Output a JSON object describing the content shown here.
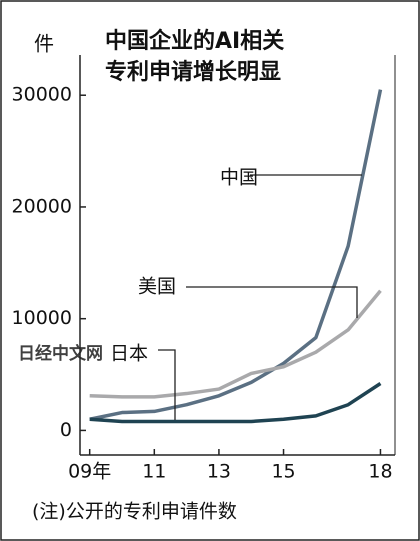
{
  "chart_data": {
    "type": "line",
    "title": [
      "中国企业的AI相关",
      "专利申请增长明显"
    ],
    "y_label": "件",
    "note": "(注)公开的专利申请件数",
    "watermark": "日经中文网",
    "x": [
      9,
      10,
      11,
      12,
      13,
      14,
      15,
      16,
      17,
      18
    ],
    "xlim": [
      8.7,
      18.45
    ],
    "xticks": [
      {
        "value": 9,
        "label": "09年"
      },
      11,
      13,
      15,
      18
    ],
    "ylim": [
      -2200,
      33600
    ],
    "yticks": [
      0,
      10000,
      20000,
      30000
    ],
    "series": [
      {
        "name": "中国",
        "color": "#5b7083",
        "values": [
          1000,
          1600,
          1700,
          2300,
          3100,
          4300,
          6000,
          8300,
          16500,
          30500
        ]
      },
      {
        "name": "美国",
        "color": "#a9a9ab",
        "values": [
          3100,
          3000,
          3000,
          3300,
          3700,
          5100,
          5700,
          7000,
          9000,
          12500
        ]
      },
      {
        "name": "日本",
        "color": "#1f4352",
        "values": [
          1000,
          800,
          800,
          800,
          800,
          800,
          1000,
          1300,
          2300,
          4200
        ]
      }
    ]
  }
}
